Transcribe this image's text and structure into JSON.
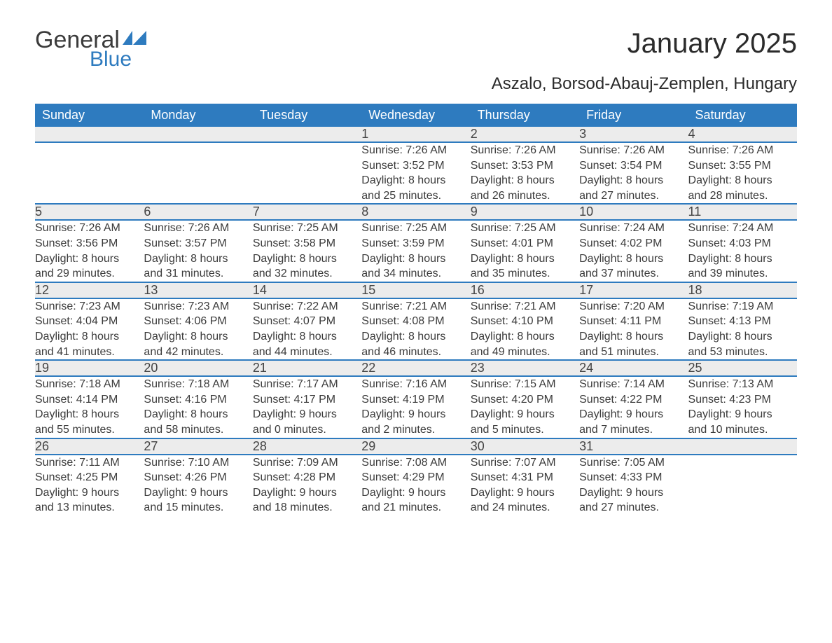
{
  "logo": {
    "word1": "General",
    "word2": "Blue",
    "brand_color": "#2e7bbf",
    "text_color": "#3b3b3b"
  },
  "title": "January 2025",
  "location": "Aszalo, Borsod-Abauj-Zemplen, Hungary",
  "colors": {
    "header_bg": "#2e7bbf",
    "header_text": "#ffffff",
    "daynum_bg": "#ececec",
    "cell_border": "#2e7bbf",
    "body_text": "#3b3b3b",
    "page_bg": "#ffffff"
  },
  "fonts": {
    "title_size": 40,
    "location_size": 24,
    "header_size": 18,
    "daynum_size": 18,
    "cell_size": 16
  },
  "weekdays": [
    "Sunday",
    "Monday",
    "Tuesday",
    "Wednesday",
    "Thursday",
    "Friday",
    "Saturday"
  ],
  "weeks": [
    [
      null,
      null,
      null,
      {
        "day": "1",
        "sunrise": "Sunrise: 7:26 AM",
        "sunset": "Sunset: 3:52 PM",
        "daylight1": "Daylight: 8 hours",
        "daylight2": "and 25 minutes."
      },
      {
        "day": "2",
        "sunrise": "Sunrise: 7:26 AM",
        "sunset": "Sunset: 3:53 PM",
        "daylight1": "Daylight: 8 hours",
        "daylight2": "and 26 minutes."
      },
      {
        "day": "3",
        "sunrise": "Sunrise: 7:26 AM",
        "sunset": "Sunset: 3:54 PM",
        "daylight1": "Daylight: 8 hours",
        "daylight2": "and 27 minutes."
      },
      {
        "day": "4",
        "sunrise": "Sunrise: 7:26 AM",
        "sunset": "Sunset: 3:55 PM",
        "daylight1": "Daylight: 8 hours",
        "daylight2": "and 28 minutes."
      }
    ],
    [
      {
        "day": "5",
        "sunrise": "Sunrise: 7:26 AM",
        "sunset": "Sunset: 3:56 PM",
        "daylight1": "Daylight: 8 hours",
        "daylight2": "and 29 minutes."
      },
      {
        "day": "6",
        "sunrise": "Sunrise: 7:26 AM",
        "sunset": "Sunset: 3:57 PM",
        "daylight1": "Daylight: 8 hours",
        "daylight2": "and 31 minutes."
      },
      {
        "day": "7",
        "sunrise": "Sunrise: 7:25 AM",
        "sunset": "Sunset: 3:58 PM",
        "daylight1": "Daylight: 8 hours",
        "daylight2": "and 32 minutes."
      },
      {
        "day": "8",
        "sunrise": "Sunrise: 7:25 AM",
        "sunset": "Sunset: 3:59 PM",
        "daylight1": "Daylight: 8 hours",
        "daylight2": "and 34 minutes."
      },
      {
        "day": "9",
        "sunrise": "Sunrise: 7:25 AM",
        "sunset": "Sunset: 4:01 PM",
        "daylight1": "Daylight: 8 hours",
        "daylight2": "and 35 minutes."
      },
      {
        "day": "10",
        "sunrise": "Sunrise: 7:24 AM",
        "sunset": "Sunset: 4:02 PM",
        "daylight1": "Daylight: 8 hours",
        "daylight2": "and 37 minutes."
      },
      {
        "day": "11",
        "sunrise": "Sunrise: 7:24 AM",
        "sunset": "Sunset: 4:03 PM",
        "daylight1": "Daylight: 8 hours",
        "daylight2": "and 39 minutes."
      }
    ],
    [
      {
        "day": "12",
        "sunrise": "Sunrise: 7:23 AM",
        "sunset": "Sunset: 4:04 PM",
        "daylight1": "Daylight: 8 hours",
        "daylight2": "and 41 minutes."
      },
      {
        "day": "13",
        "sunrise": "Sunrise: 7:23 AM",
        "sunset": "Sunset: 4:06 PM",
        "daylight1": "Daylight: 8 hours",
        "daylight2": "and 42 minutes."
      },
      {
        "day": "14",
        "sunrise": "Sunrise: 7:22 AM",
        "sunset": "Sunset: 4:07 PM",
        "daylight1": "Daylight: 8 hours",
        "daylight2": "and 44 minutes."
      },
      {
        "day": "15",
        "sunrise": "Sunrise: 7:21 AM",
        "sunset": "Sunset: 4:08 PM",
        "daylight1": "Daylight: 8 hours",
        "daylight2": "and 46 minutes."
      },
      {
        "day": "16",
        "sunrise": "Sunrise: 7:21 AM",
        "sunset": "Sunset: 4:10 PM",
        "daylight1": "Daylight: 8 hours",
        "daylight2": "and 49 minutes."
      },
      {
        "day": "17",
        "sunrise": "Sunrise: 7:20 AM",
        "sunset": "Sunset: 4:11 PM",
        "daylight1": "Daylight: 8 hours",
        "daylight2": "and 51 minutes."
      },
      {
        "day": "18",
        "sunrise": "Sunrise: 7:19 AM",
        "sunset": "Sunset: 4:13 PM",
        "daylight1": "Daylight: 8 hours",
        "daylight2": "and 53 minutes."
      }
    ],
    [
      {
        "day": "19",
        "sunrise": "Sunrise: 7:18 AM",
        "sunset": "Sunset: 4:14 PM",
        "daylight1": "Daylight: 8 hours",
        "daylight2": "and 55 minutes."
      },
      {
        "day": "20",
        "sunrise": "Sunrise: 7:18 AM",
        "sunset": "Sunset: 4:16 PM",
        "daylight1": "Daylight: 8 hours",
        "daylight2": "and 58 minutes."
      },
      {
        "day": "21",
        "sunrise": "Sunrise: 7:17 AM",
        "sunset": "Sunset: 4:17 PM",
        "daylight1": "Daylight: 9 hours",
        "daylight2": "and 0 minutes."
      },
      {
        "day": "22",
        "sunrise": "Sunrise: 7:16 AM",
        "sunset": "Sunset: 4:19 PM",
        "daylight1": "Daylight: 9 hours",
        "daylight2": "and 2 minutes."
      },
      {
        "day": "23",
        "sunrise": "Sunrise: 7:15 AM",
        "sunset": "Sunset: 4:20 PM",
        "daylight1": "Daylight: 9 hours",
        "daylight2": "and 5 minutes."
      },
      {
        "day": "24",
        "sunrise": "Sunrise: 7:14 AM",
        "sunset": "Sunset: 4:22 PM",
        "daylight1": "Daylight: 9 hours",
        "daylight2": "and 7 minutes."
      },
      {
        "day": "25",
        "sunrise": "Sunrise: 7:13 AM",
        "sunset": "Sunset: 4:23 PM",
        "daylight1": "Daylight: 9 hours",
        "daylight2": "and 10 minutes."
      }
    ],
    [
      {
        "day": "26",
        "sunrise": "Sunrise: 7:11 AM",
        "sunset": "Sunset: 4:25 PM",
        "daylight1": "Daylight: 9 hours",
        "daylight2": "and 13 minutes."
      },
      {
        "day": "27",
        "sunrise": "Sunrise: 7:10 AM",
        "sunset": "Sunset: 4:26 PM",
        "daylight1": "Daylight: 9 hours",
        "daylight2": "and 15 minutes."
      },
      {
        "day": "28",
        "sunrise": "Sunrise: 7:09 AM",
        "sunset": "Sunset: 4:28 PM",
        "daylight1": "Daylight: 9 hours",
        "daylight2": "and 18 minutes."
      },
      {
        "day": "29",
        "sunrise": "Sunrise: 7:08 AM",
        "sunset": "Sunset: 4:29 PM",
        "daylight1": "Daylight: 9 hours",
        "daylight2": "and 21 minutes."
      },
      {
        "day": "30",
        "sunrise": "Sunrise: 7:07 AM",
        "sunset": "Sunset: 4:31 PM",
        "daylight1": "Daylight: 9 hours",
        "daylight2": "and 24 minutes."
      },
      {
        "day": "31",
        "sunrise": "Sunrise: 7:05 AM",
        "sunset": "Sunset: 4:33 PM",
        "daylight1": "Daylight: 9 hours",
        "daylight2": "and 27 minutes."
      },
      null
    ]
  ]
}
